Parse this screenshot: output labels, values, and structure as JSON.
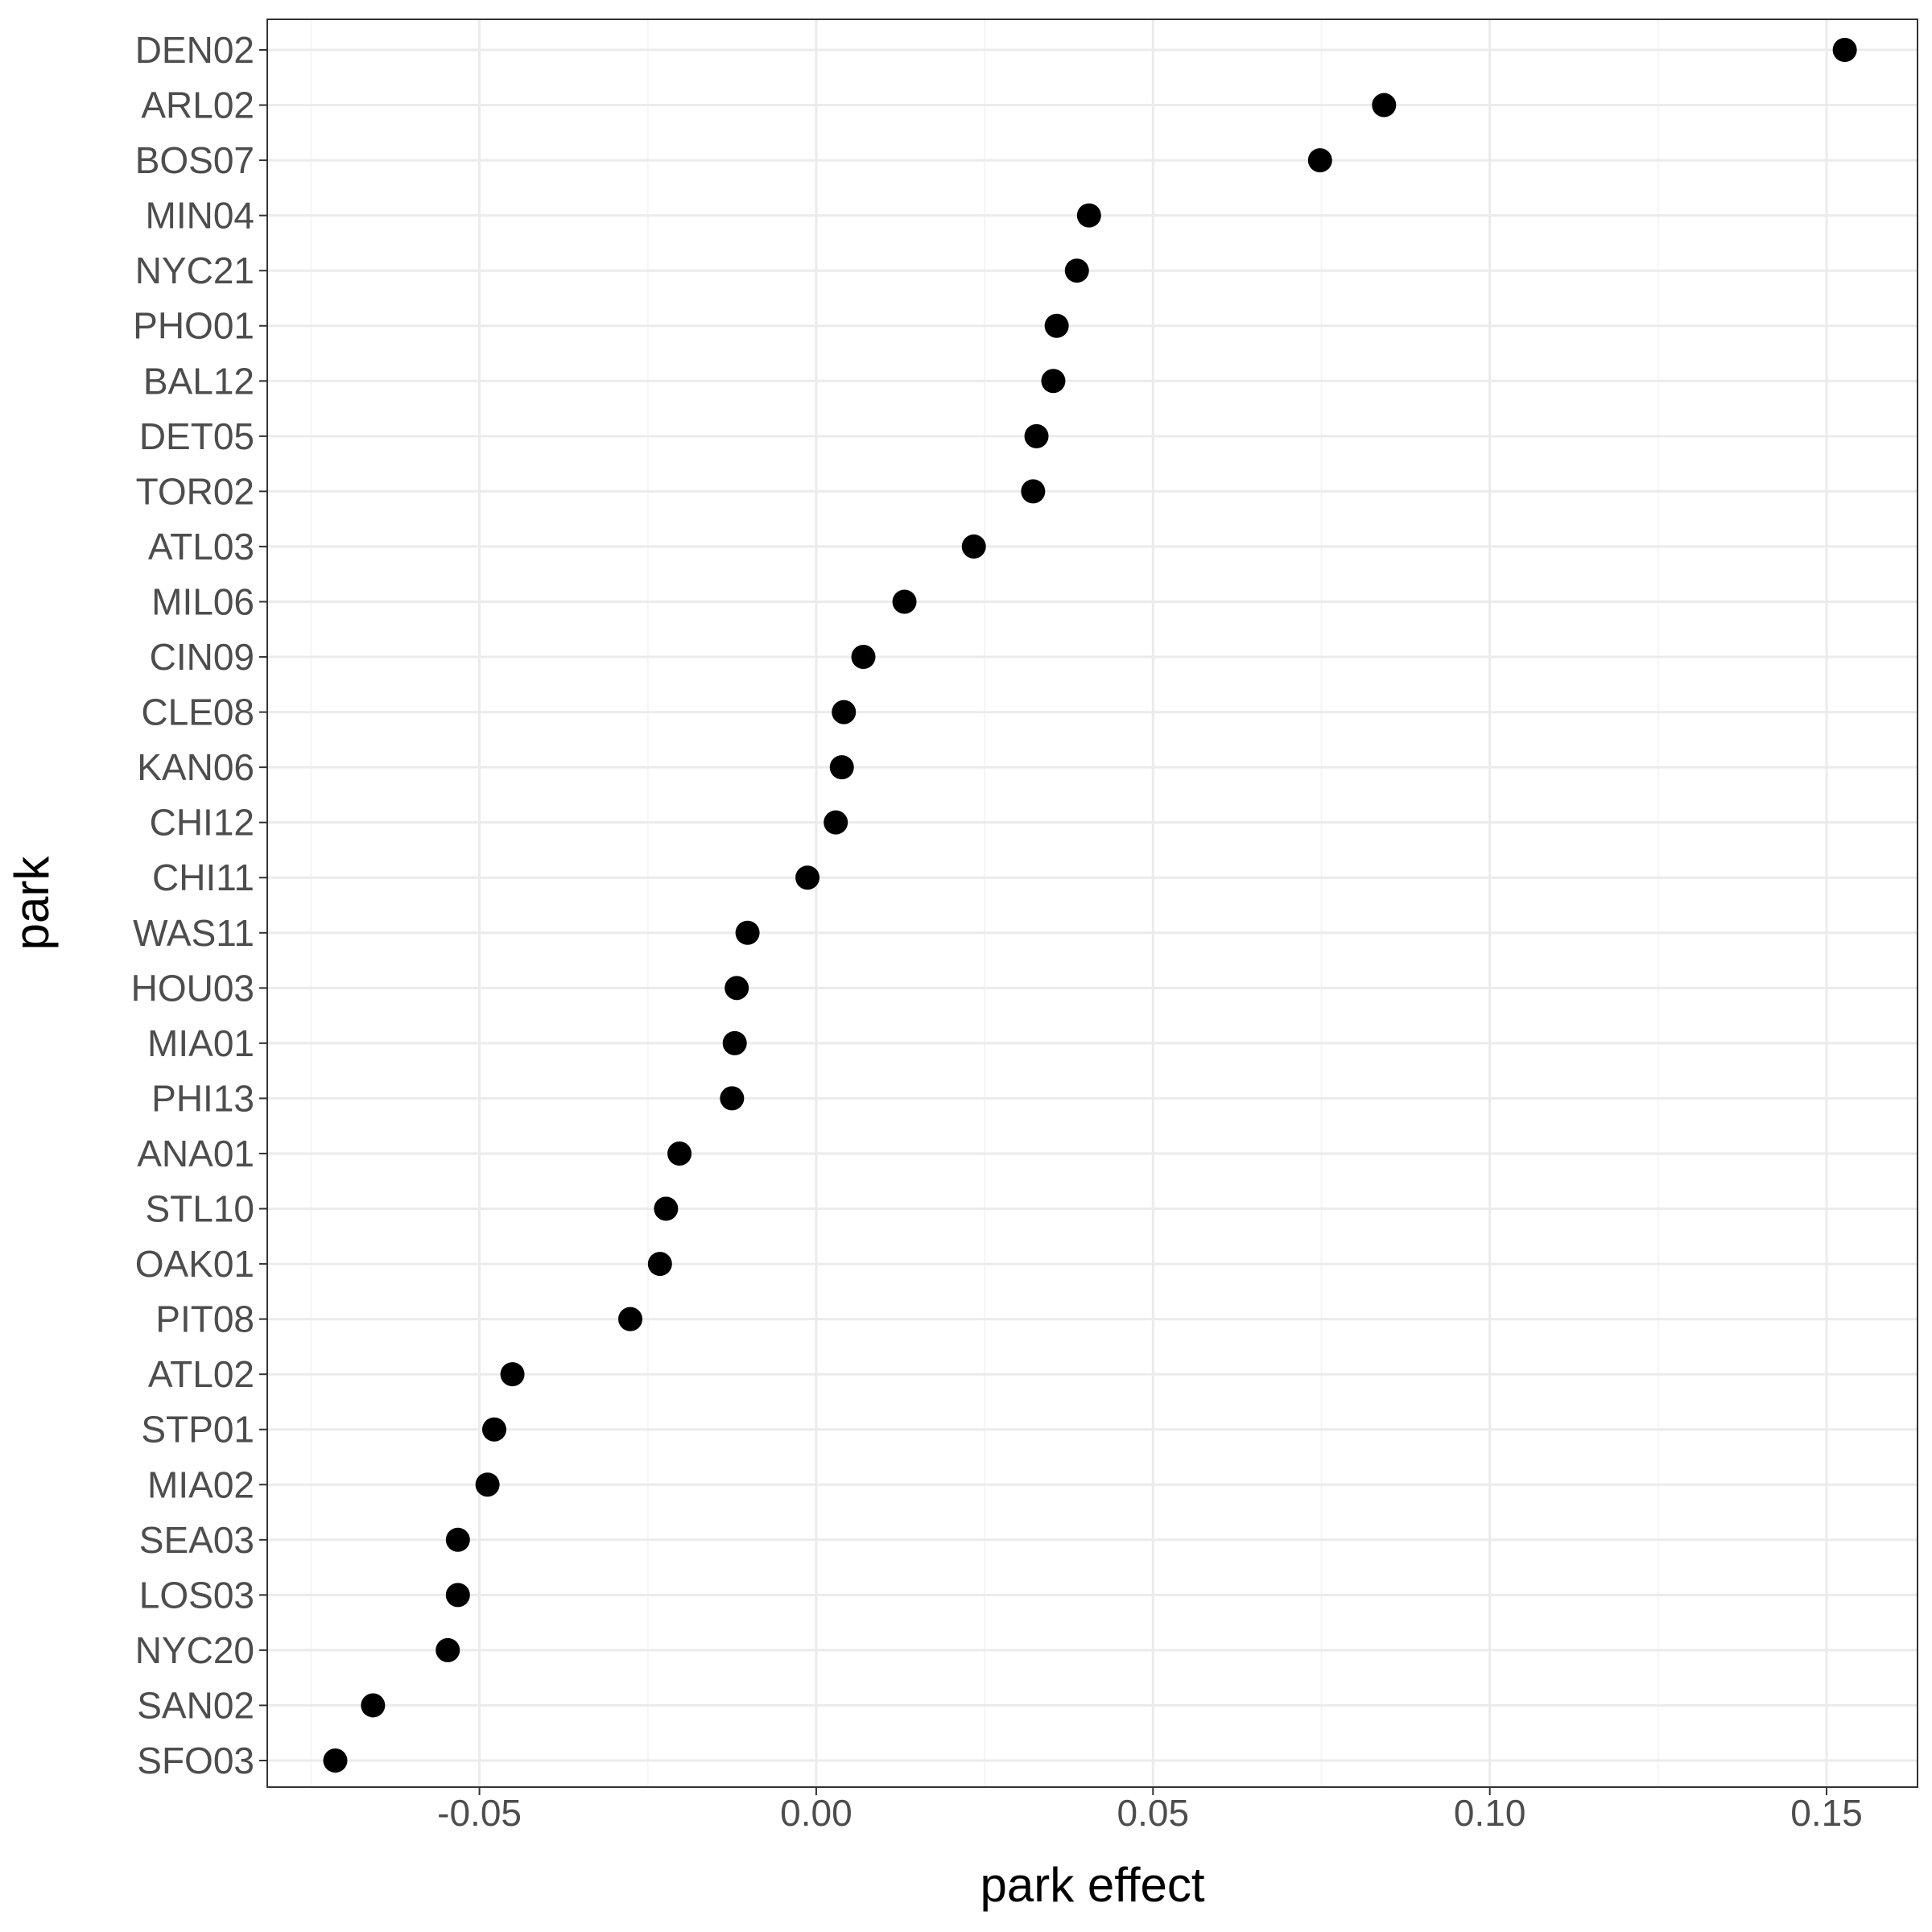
{
  "chart_data": {
    "type": "scatter",
    "xlabel": "park effect",
    "ylabel": "park",
    "xlim": [
      -0.0815,
      0.1635
    ],
    "x_ticks": [
      -0.05,
      0.0,
      0.05,
      0.1,
      0.15
    ],
    "x_tick_labels": [
      "-0.05",
      "0.00",
      "0.05",
      "0.10",
      "0.15"
    ],
    "x_minor_ticks": [
      -0.075,
      -0.025,
      0.025,
      0.075,
      0.125
    ],
    "grid": true,
    "legend": "none",
    "categories": [
      "DEN02",
      "ARL02",
      "BOS07",
      "MIN04",
      "NYC21",
      "PHO01",
      "BAL12",
      "DET05",
      "TOR02",
      "ATL03",
      "MIL06",
      "CIN09",
      "CLE08",
      "KAN06",
      "CHI12",
      "CHI11",
      "WAS11",
      "HOU03",
      "MIA01",
      "PHI13",
      "ANA01",
      "STL10",
      "OAK01",
      "PIT08",
      "ATL02",
      "STP01",
      "MIA02",
      "SEA03",
      "LOS03",
      "NYC20",
      "SAN02",
      "SFO03"
    ],
    "values": [
      0.1527,
      0.0843,
      0.0748,
      0.0405,
      0.0387,
      0.0357,
      0.0352,
      0.0327,
      0.0322,
      0.0234,
      0.0131,
      0.007,
      0.0041,
      0.0038,
      0.0029,
      -0.0013,
      -0.0102,
      -0.0118,
      -0.0121,
      -0.0125,
      -0.0203,
      -0.0223,
      -0.0232,
      -0.0276,
      -0.0451,
      -0.0478,
      -0.0488,
      -0.0532,
      -0.0532,
      -0.0547,
      -0.0658,
      -0.0714
    ]
  },
  "colors": {
    "point": "#000000",
    "grid_major": "#ebebeb",
    "grid_minor": "#f5f5f5",
    "panel_border": "#333333",
    "tick_text": "#4d4d4d",
    "title_text": "#000000",
    "background": "#ffffff"
  }
}
